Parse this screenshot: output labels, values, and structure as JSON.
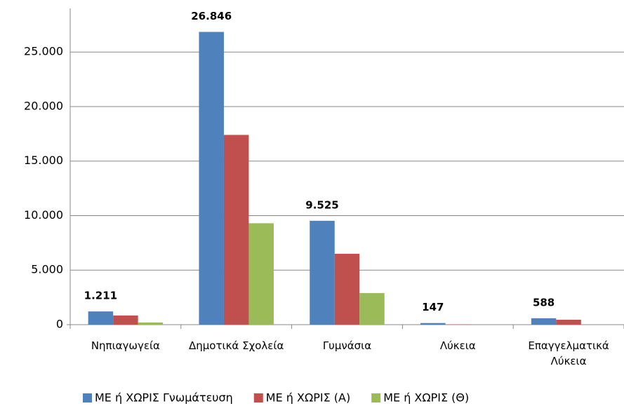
{
  "chart_data": {
    "type": "bar",
    "categories": [
      "Νηπιαγωγεία",
      "Δημοτικά Σχολεία",
      "Γυμνάσια",
      "Λύκεια",
      "Επαγγελματικά Λύκεια"
    ],
    "series": [
      {
        "name": "ΜΕ ή ΧΩΡΙΣ Γνωμάτευση",
        "color": "#4f81bd",
        "values": [
          1211,
          26846,
          9525,
          147,
          588
        ],
        "value_labels": [
          "1.211",
          "26.846",
          "9.525",
          "147",
          "588"
        ]
      },
      {
        "name": "ΜΕ ή ΧΩΡΙΣ (Α)",
        "color": "#c0504d",
        "values": [
          840,
          17400,
          6500,
          20,
          450
        ]
      },
      {
        "name": "ΜΕ ή ΧΩΡΙΣ (Θ)",
        "color": "#9bbb59",
        "values": [
          200,
          9300,
          2900,
          0,
          0
        ]
      }
    ],
    "ylim": [
      0,
      29000
    ],
    "yticks": [
      0,
      {
        "value": 5000,
        "label": "5.000"
      },
      {
        "value": 10000,
        "label": "10.000"
      },
      {
        "value": 15000,
        "label": "15.000"
      },
      {
        "value": 20000,
        "label": "20.000"
      },
      {
        "value": 25000,
        "label": "25.000"
      }
    ],
    "grid": true,
    "legend": "bottom"
  }
}
